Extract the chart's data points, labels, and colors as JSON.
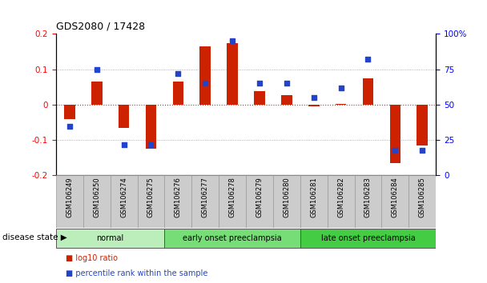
{
  "title": "GDS2080 / 17428",
  "samples": [
    "GSM106249",
    "GSM106250",
    "GSM106274",
    "GSM106275",
    "GSM106276",
    "GSM106277",
    "GSM106278",
    "GSM106279",
    "GSM106280",
    "GSM106281",
    "GSM106282",
    "GSM106283",
    "GSM106284",
    "GSM106285"
  ],
  "log10_ratio": [
    -0.04,
    0.065,
    -0.065,
    -0.125,
    0.065,
    0.165,
    0.175,
    0.038,
    0.028,
    -0.005,
    0.003,
    0.075,
    -0.165,
    -0.115
  ],
  "percentile_rank": [
    35,
    75,
    22,
    22,
    72,
    65,
    95,
    65,
    65,
    55,
    62,
    82,
    18,
    18
  ],
  "ylim_left": [
    -0.2,
    0.2
  ],
  "ylim_right": [
    0,
    100
  ],
  "yticks_left": [
    -0.2,
    -0.1,
    0,
    0.1,
    0.2
  ],
  "yticks_right": [
    0,
    25,
    50,
    75,
    100
  ],
  "ytick_labels_right": [
    "0",
    "25",
    "50",
    "75",
    "100%"
  ],
  "groups": [
    {
      "label": "normal",
      "start": 0,
      "end": 3,
      "color": "#bbeebb"
    },
    {
      "label": "early onset preeclampsia",
      "start": 4,
      "end": 8,
      "color": "#77dd77"
    },
    {
      "label": "late onset preeclampsia",
      "start": 9,
      "end": 13,
      "color": "#44cc44"
    }
  ],
  "bar_color": "#cc2200",
  "dot_color": "#2244cc",
  "zero_line_color": "#dd2200",
  "grid_color": "#999999",
  "bg_color": "#ffffff",
  "legend_log10": "log10 ratio",
  "legend_pct": "percentile rank within the sample",
  "disease_state_label": "disease state",
  "bar_width": 0.4
}
